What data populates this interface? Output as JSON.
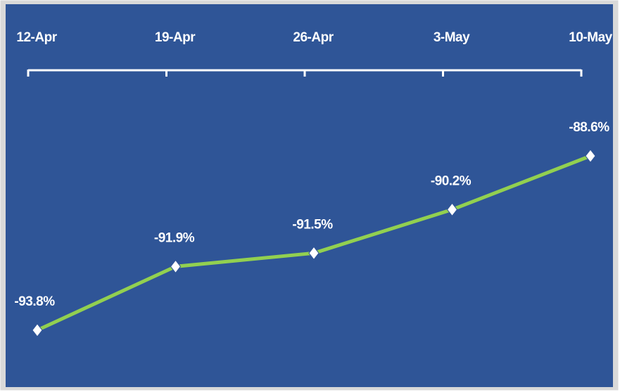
{
  "chart_data": {
    "type": "line",
    "categories": [
      "12-Apr",
      "19-Apr",
      "26-Apr",
      "3-May",
      "10-May"
    ],
    "series": [
      {
        "color": "#92d050",
        "values": [
          -93.8,
          -91.9,
          -91.5,
          -90.2,
          -88.6
        ],
        "value_labels": [
          "-93.8%",
          "-91.9%",
          "-91.5%",
          "-90.2%",
          "-88.6%"
        ]
      }
    ],
    "background": "#2f5597",
    "marker_color": "#ffffff"
  }
}
